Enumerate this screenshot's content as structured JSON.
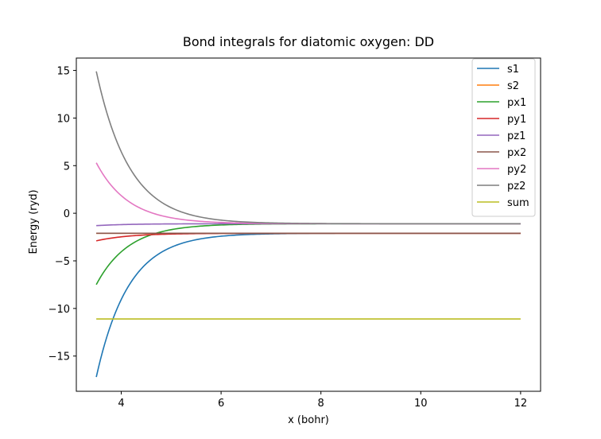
{
  "chart_data": {
    "type": "line",
    "title": "Bond integrals for diatomic oxygen: DD",
    "xlabel": "x (bohr)",
    "ylabel": "Energy (ryd)",
    "xlim": [
      3.1,
      12.4
    ],
    "ylim": [
      -18.7,
      16.3
    ],
    "xticks": [
      4,
      6,
      8,
      10,
      12
    ],
    "yticks": [
      -15,
      -10,
      -5,
      0,
      5,
      10,
      15
    ],
    "grid": false,
    "legend_position": "top-right",
    "x_range": [
      3.5,
      12.0
    ],
    "series": [
      {
        "name": "s1",
        "color": "#1f77b4",
        "asymptote": -2.1,
        "amplitude": -15.1,
        "decay": 1.55
      },
      {
        "name": "s2",
        "color": "#ff7f0e",
        "asymptote": -2.1,
        "amplitude": 0.0,
        "decay": 1.0
      },
      {
        "name": "px1",
        "color": "#2ca02c",
        "asymptote": -1.1,
        "amplitude": -6.4,
        "decay": 1.55
      },
      {
        "name": "py1",
        "color": "#d62728",
        "asymptote": -2.1,
        "amplitude": -0.8,
        "decay": 1.5
      },
      {
        "name": "pz1",
        "color": "#9467bd",
        "asymptote": -1.1,
        "amplitude": -0.2,
        "decay": 1.5
      },
      {
        "name": "px2",
        "color": "#8c564b",
        "asymptote": -2.1,
        "amplitude": 0.0,
        "decay": 1.0
      },
      {
        "name": "py2",
        "color": "#e377c2",
        "asymptote": -1.1,
        "amplitude": 6.4,
        "decay": 1.55
      },
      {
        "name": "pz2",
        "color": "#7f7f7f",
        "asymptote": -1.1,
        "amplitude": 16.0,
        "decay": 1.5
      },
      {
        "name": "sum",
        "color": "#bcbd22",
        "asymptote": -11.1,
        "amplitude": 0.0,
        "decay": 1.0
      }
    ]
  }
}
